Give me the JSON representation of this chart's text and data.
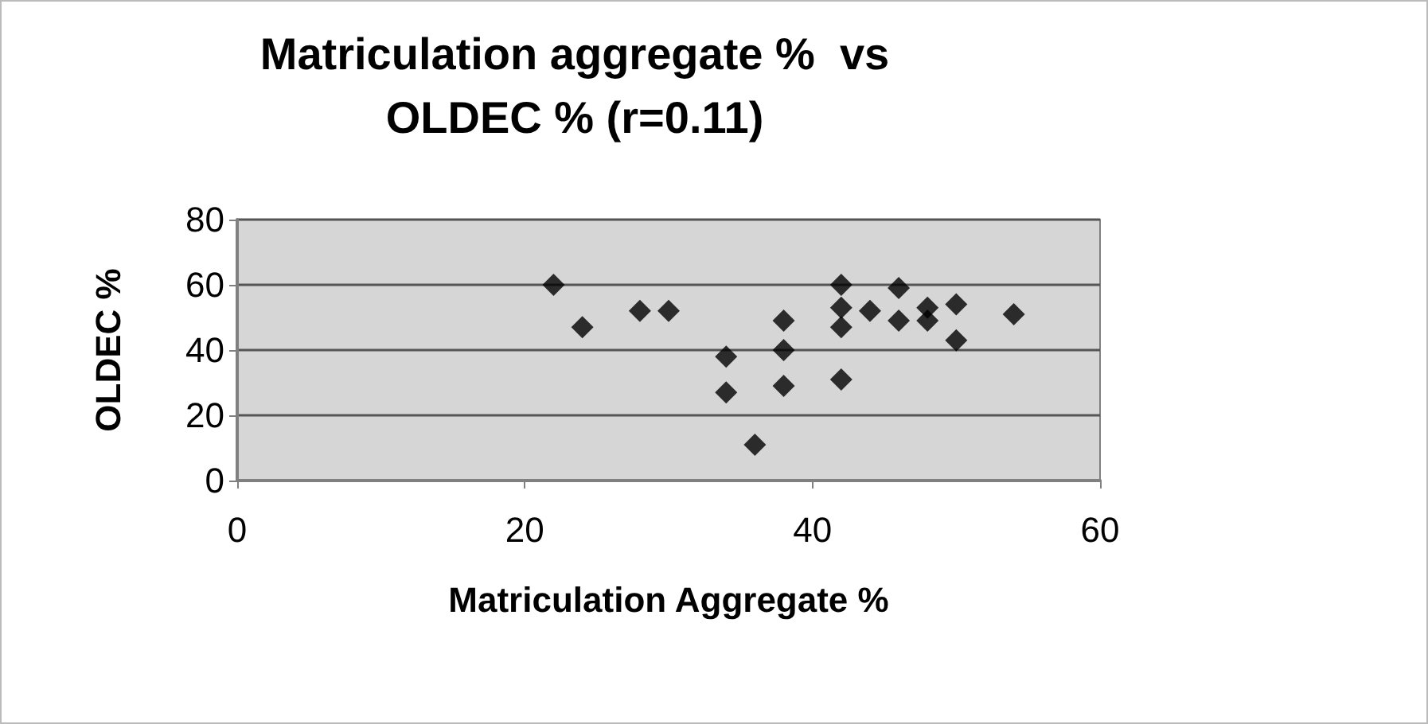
{
  "chart_data": {
    "type": "scatter",
    "title": "Matriculation aggregate %  vs\nOLDEC % (r=0.11)",
    "xlabel": "Matriculation Aggregate %",
    "ylabel": "OLDEC %",
    "x": [
      22,
      24,
      28,
      30,
      34,
      34,
      36,
      38,
      38,
      38,
      42,
      42,
      42,
      42,
      44,
      46,
      46,
      48,
      48,
      50,
      50,
      54
    ],
    "values": [
      60,
      47,
      52,
      52,
      38,
      27,
      11,
      49,
      40,
      29,
      60,
      53,
      47,
      31,
      52,
      59,
      49,
      53,
      49,
      54,
      43,
      51
    ],
    "color": "#000000",
    "marker": "diamond",
    "xlim": [
      0,
      60
    ],
    "xticks": [
      0,
      20,
      40,
      60
    ],
    "ylim": [
      0,
      80
    ],
    "yticks": [
      0,
      20,
      40,
      60,
      80
    ],
    "grid": "y"
  }
}
